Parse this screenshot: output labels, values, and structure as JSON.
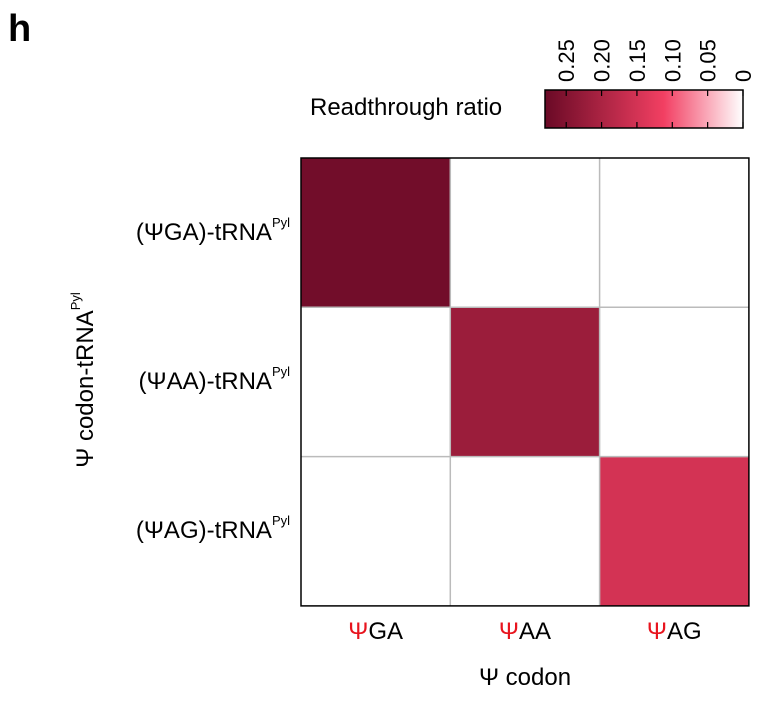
{
  "panel_letter": "h",
  "chart_data": {
    "type": "heatmap",
    "xlabel": "Ψ codon",
    "ylabel": "Ψ codon-tRNA",
    "ylabel_superscript": "Pyl",
    "x_categories": [
      {
        "prefix": "Ψ",
        "text": "GA"
      },
      {
        "prefix": "Ψ",
        "text": "AA"
      },
      {
        "prefix": "Ψ",
        "text": "AG"
      }
    ],
    "y_categories": [
      {
        "text": "(ΨGA)-tRNA",
        "sup": "Pyl"
      },
      {
        "text": "(ΨAA)-tRNA",
        "sup": "Pyl"
      },
      {
        "text": "(ΨAG)-tRNA",
        "sup": "Pyl"
      }
    ],
    "values": [
      [
        0.27,
        0.0,
        0.0
      ],
      [
        0.0,
        0.22,
        0.0
      ],
      [
        0.0,
        0.0,
        0.15
      ]
    ],
    "colorbar": {
      "title": "Readthrough ratio",
      "ticks": [
        "0.25",
        "0.20",
        "0.15",
        "0.10",
        "0.05",
        "0"
      ],
      "range": [
        0,
        0.28
      ],
      "direction": "reversed"
    },
    "colors": {
      "high": "#6a0a26",
      "mid": "#f23f62",
      "low": "#ffffff",
      "grid": "#bbbbbb",
      "codon_prefix": "#e8141e"
    }
  }
}
